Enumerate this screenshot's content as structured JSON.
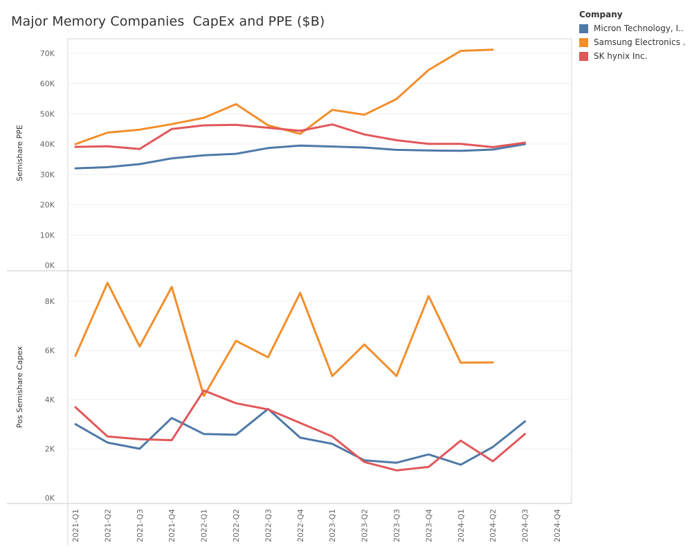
{
  "title": "Major Memory Companies  CapEx and PPE ($B)",
  "legend": {
    "title": "Company",
    "items": [
      {
        "label": "Micron Technology, I..",
        "color": "#4e79a7"
      },
      {
        "label": "Samsung Electronics ..",
        "color": "#f28e2b"
      },
      {
        "label": "SK hynix Inc.",
        "color": "#e15759"
      }
    ]
  },
  "chart_data": [
    {
      "type": "line",
      "ylabel": "Semishare PPE",
      "xlabel": "",
      "ylim": [
        0,
        73000
      ],
      "yticks": [
        0,
        10000,
        20000,
        30000,
        40000,
        50000,
        60000,
        70000
      ],
      "ytick_labels": [
        "0K",
        "10K",
        "20K",
        "30K",
        "40K",
        "50K",
        "60K",
        "70K"
      ],
      "categories": [
        "2021-Q1",
        "2021-Q2",
        "2021-Q3",
        "2021-Q4",
        "2022-Q1",
        "2022-Q2",
        "2022-Q3",
        "2022-Q4",
        "2023-Q1",
        "2023-Q2",
        "2023-Q3",
        "2023-Q4",
        "2024-Q1",
        "2024-Q2",
        "2024-Q3",
        "2024-Q4"
      ],
      "series": [
        {
          "name": "Micron Technology, I..",
          "values": [
            32000,
            32400,
            33400,
            35300,
            36300,
            36800,
            38700,
            39500,
            39200,
            38900,
            38100,
            37900,
            37800,
            38200,
            40000,
            null
          ]
        },
        {
          "name": "Samsung Electronics ..",
          "values": [
            40000,
            43800,
            44800,
            46600,
            48700,
            53200,
            46200,
            43400,
            51300,
            49700,
            54900,
            64500,
            70800,
            71200,
            null,
            null
          ]
        },
        {
          "name": "SK hynix Inc.",
          "values": [
            39100,
            39300,
            38400,
            45000,
            46200,
            46400,
            45400,
            44400,
            46500,
            43200,
            41300,
            40100,
            40100,
            39000,
            40500,
            null
          ]
        }
      ]
    },
    {
      "type": "line",
      "ylabel": "Pos Semishare Capex",
      "xlabel": "",
      "ylim": [
        -200,
        9000
      ],
      "yticks": [
        0,
        2000,
        4000,
        6000,
        8000
      ],
      "ytick_labels": [
        "0K",
        "2K",
        "4K",
        "6K",
        "8K"
      ],
      "categories": [
        "2021-Q1",
        "2021-Q2",
        "2021-Q3",
        "2021-Q4",
        "2022-Q1",
        "2022-Q2",
        "2022-Q3",
        "2022-Q4",
        "2023-Q1",
        "2023-Q2",
        "2023-Q3",
        "2023-Q4",
        "2024-Q1",
        "2024-Q2",
        "2024-Q3",
        "2024-Q4"
      ],
      "series": [
        {
          "name": "Micron Technology, I..",
          "values": [
            3000,
            2250,
            2000,
            3250,
            2600,
            2570,
            3620,
            2450,
            2200,
            1530,
            1430,
            1770,
            1350,
            2070,
            3110,
            null
          ]
        },
        {
          "name": "Samsung Electronics ..",
          "values": [
            5780,
            8750,
            6160,
            8580,
            4150,
            6390,
            5720,
            8340,
            4960,
            6240,
            4960,
            8210,
            5500,
            5510,
            null,
            null
          ]
        },
        {
          "name": "SK hynix Inc.",
          "values": [
            3690,
            2500,
            2390,
            2350,
            4370,
            3850,
            3600,
            3050,
            2500,
            1460,
            1120,
            1260,
            2330,
            1490,
            2600,
            null
          ]
        }
      ]
    }
  ]
}
